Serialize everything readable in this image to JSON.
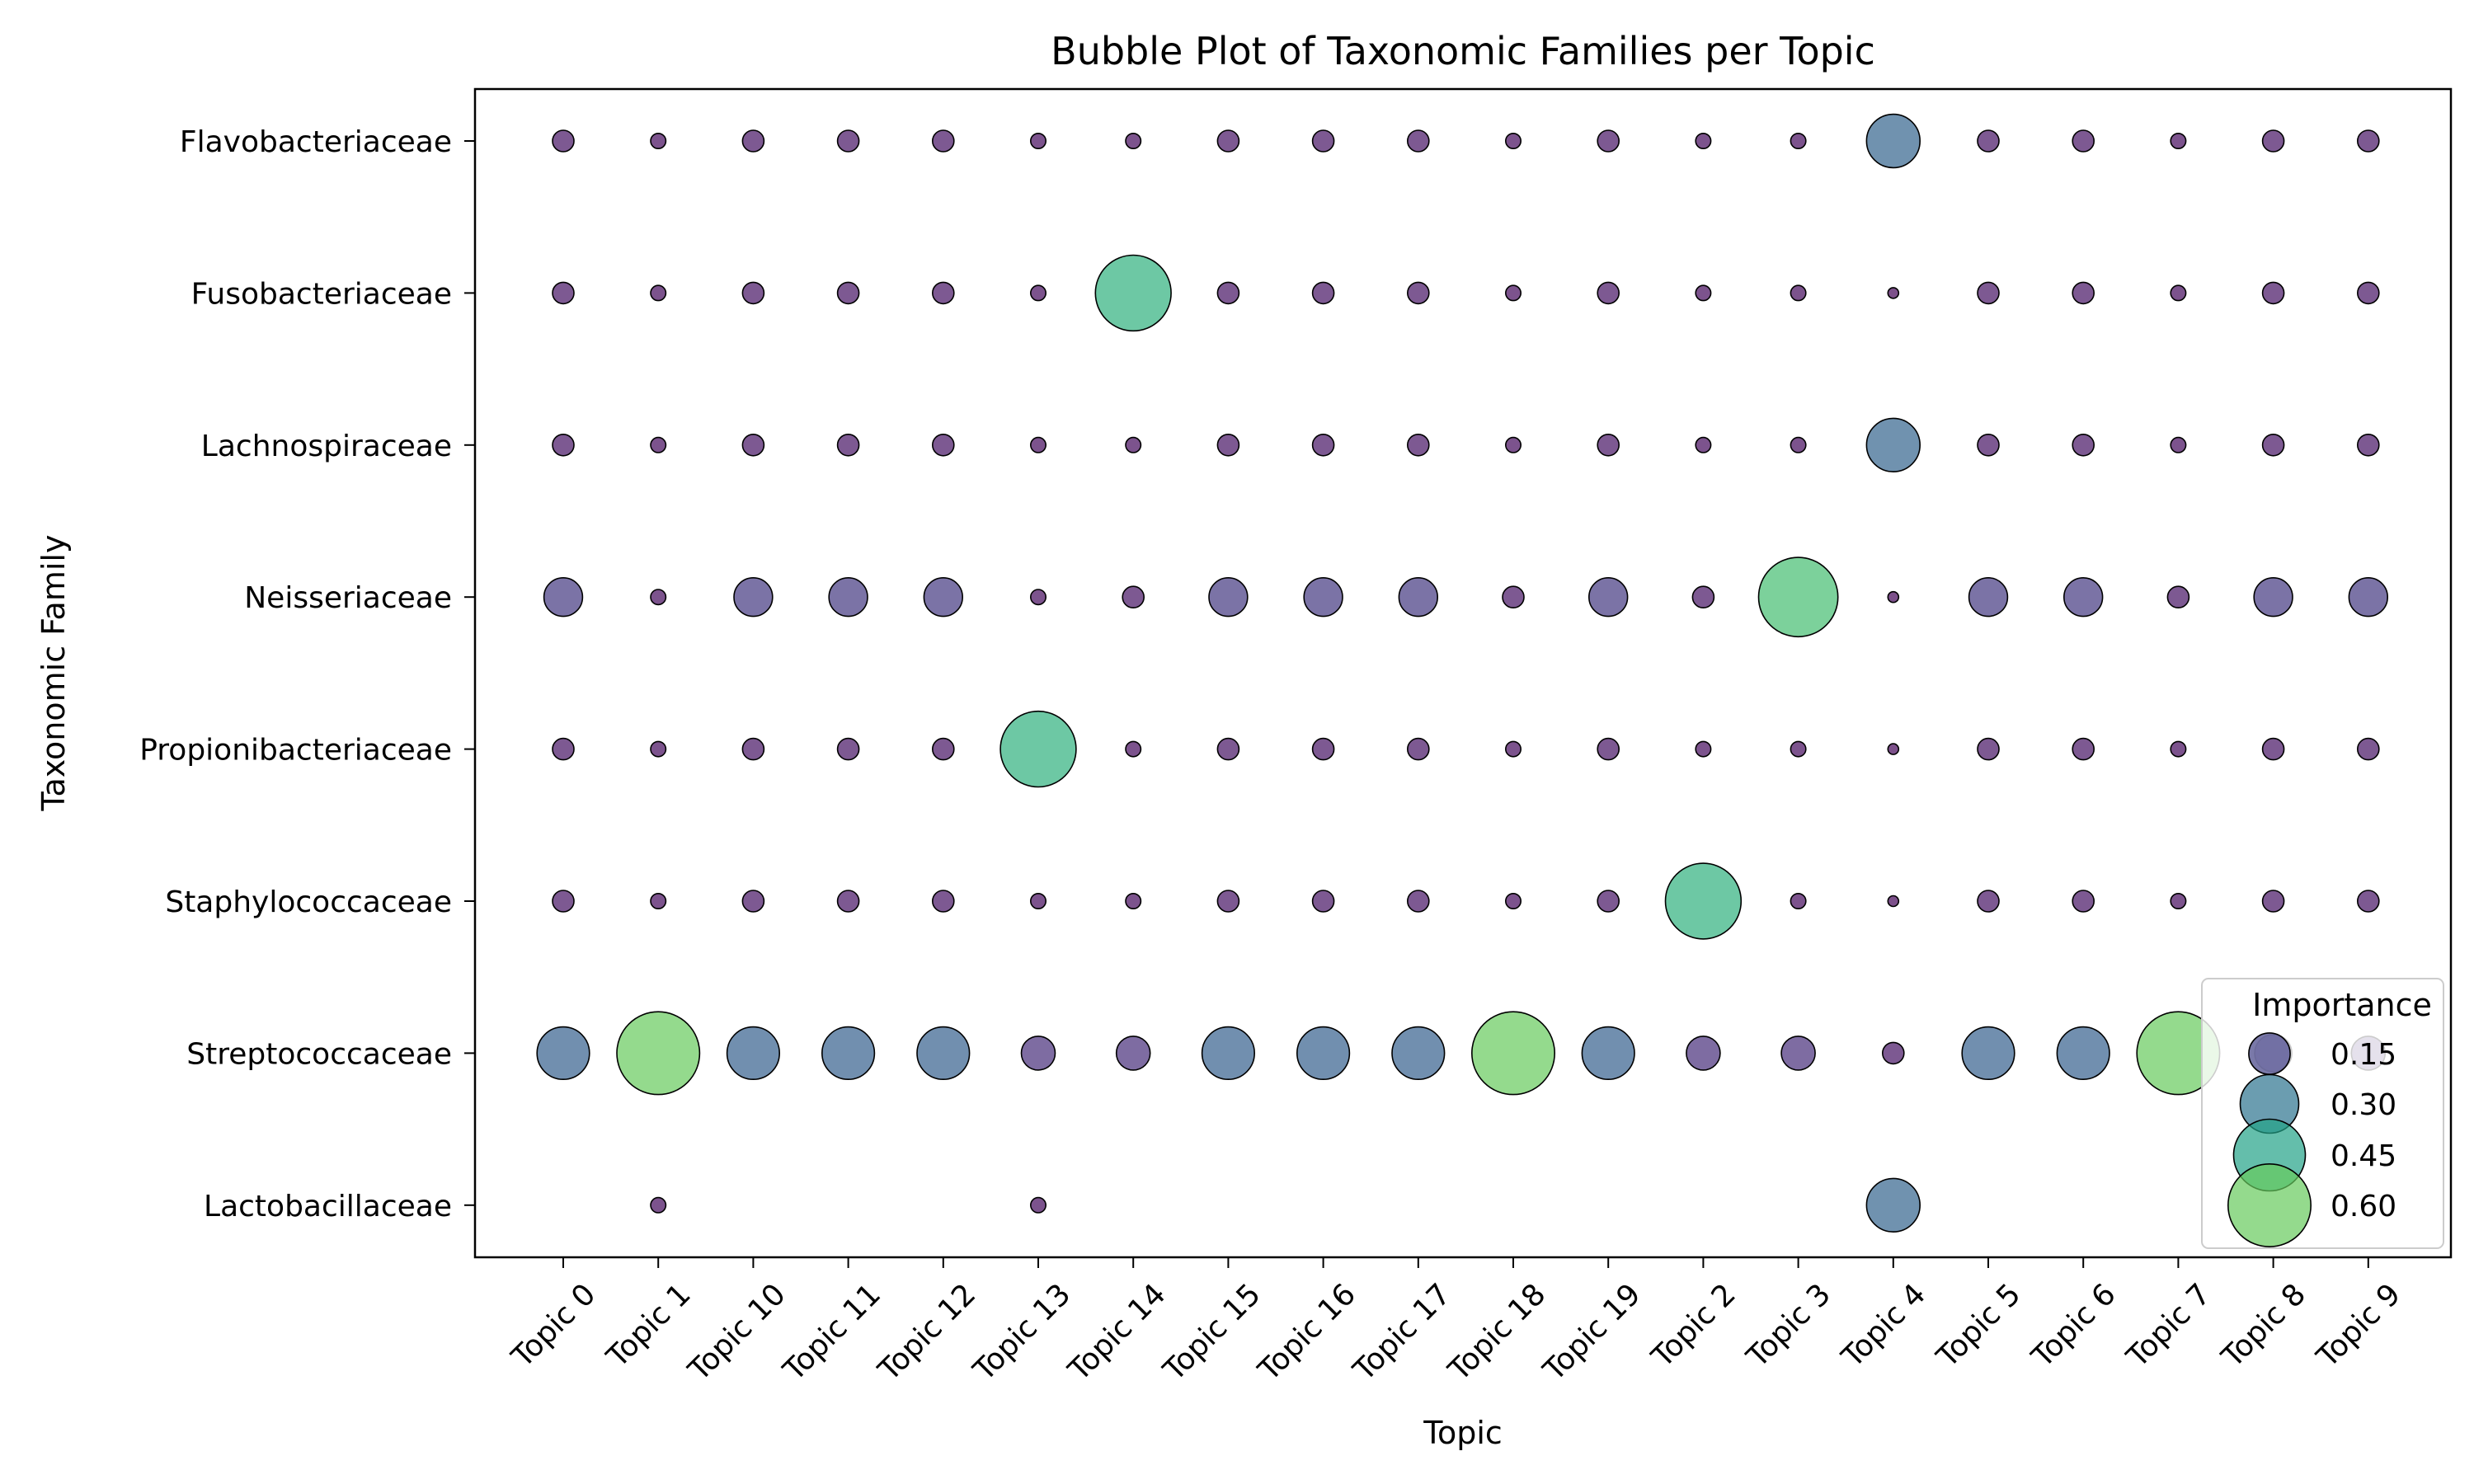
{
  "chart_data": {
    "type": "scatter",
    "title": "Bubble Plot of Taxonomic Families per Topic",
    "xlabel": "Topic",
    "ylabel": "Taxonomic Family",
    "x_categories": [
      "Topic 0",
      "Topic 1",
      "Topic 10",
      "Topic 11",
      "Topic 12",
      "Topic 13",
      "Topic 14",
      "Topic 15",
      "Topic 16",
      "Topic 17",
      "Topic 18",
      "Topic 19",
      "Topic 2",
      "Topic 3",
      "Topic 4",
      "Topic 5",
      "Topic 6",
      "Topic 7",
      "Topic 8",
      "Topic 9"
    ],
    "y_categories": [
      "Flavobacteriaceae",
      "Fusobacteriaceae",
      "Lachnospiraceae",
      "Neisseriaceae",
      "Propionibacteriaceae",
      "Staphylococcaceae",
      "Streptococcaceae",
      "Lactobacillaceae"
    ],
    "size_encoding": "Importance",
    "color_scale": "viridis",
    "color_range": [
      0.0,
      0.7
    ],
    "grid": false,
    "legend": {
      "title": "Importance",
      "position": "lower-right",
      "entries": [
        {
          "label": "0.15",
          "value": 0.15
        },
        {
          "label": "0.30",
          "value": 0.3
        },
        {
          "label": "0.45",
          "value": 0.45
        },
        {
          "label": "0.60",
          "value": 0.6
        }
      ]
    },
    "series": [
      {
        "family": "Flavobacteriaceae",
        "values": [
          0.04,
          0.02,
          0.04,
          0.04,
          0.04,
          0.02,
          0.02,
          0.04,
          0.04,
          0.04,
          0.02,
          0.04,
          0.02,
          0.02,
          0.25,
          0.04,
          0.04,
          0.02,
          0.04,
          0.04
        ]
      },
      {
        "family": "Fusobacteriaceae",
        "values": [
          0.04,
          0.02,
          0.04,
          0.04,
          0.04,
          0.02,
          0.5,
          0.04,
          0.04,
          0.04,
          0.02,
          0.04,
          0.02,
          0.02,
          0.01,
          0.04,
          0.04,
          0.02,
          0.04,
          0.04
        ]
      },
      {
        "family": "Lachnospiraceae",
        "values": [
          0.04,
          0.02,
          0.04,
          0.04,
          0.04,
          0.02,
          0.02,
          0.04,
          0.04,
          0.04,
          0.02,
          0.04,
          0.02,
          0.02,
          0.25,
          0.04,
          0.04,
          0.02,
          0.04,
          0.04
        ]
      },
      {
        "family": "Neisseriaceae",
        "values": [
          0.13,
          0.02,
          0.13,
          0.13,
          0.13,
          0.02,
          0.04,
          0.13,
          0.13,
          0.13,
          0.04,
          0.13,
          0.04,
          0.55,
          0.01,
          0.13,
          0.13,
          0.04,
          0.13,
          0.13
        ]
      },
      {
        "family": "Propionibacteriaceae",
        "values": [
          0.04,
          0.02,
          0.04,
          0.04,
          0.04,
          0.5,
          0.02,
          0.04,
          0.04,
          0.04,
          0.02,
          0.04,
          0.02,
          0.02,
          0.01,
          0.04,
          0.04,
          0.02,
          0.04,
          0.04
        ]
      },
      {
        "family": "Staphylococcaceae",
        "values": [
          0.04,
          0.02,
          0.04,
          0.04,
          0.04,
          0.02,
          0.02,
          0.04,
          0.04,
          0.04,
          0.02,
          0.04,
          0.5,
          0.02,
          0.01,
          0.04,
          0.04,
          0.02,
          0.04,
          0.04
        ]
      },
      {
        "family": "Streptococcaceae",
        "values": [
          0.24,
          0.6,
          0.24,
          0.24,
          0.24,
          0.1,
          0.1,
          0.24,
          0.24,
          0.24,
          0.6,
          0.24,
          0.1,
          0.1,
          0.04,
          0.24,
          0.24,
          0.6,
          0.12,
          0.1
        ]
      },
      {
        "family": "Lactobacillaceae",
        "values": [
          null,
          0.02,
          null,
          null,
          null,
          0.02,
          null,
          null,
          null,
          null,
          null,
          null,
          null,
          null,
          0.25,
          null,
          null,
          null,
          null,
          null
        ]
      }
    ]
  }
}
